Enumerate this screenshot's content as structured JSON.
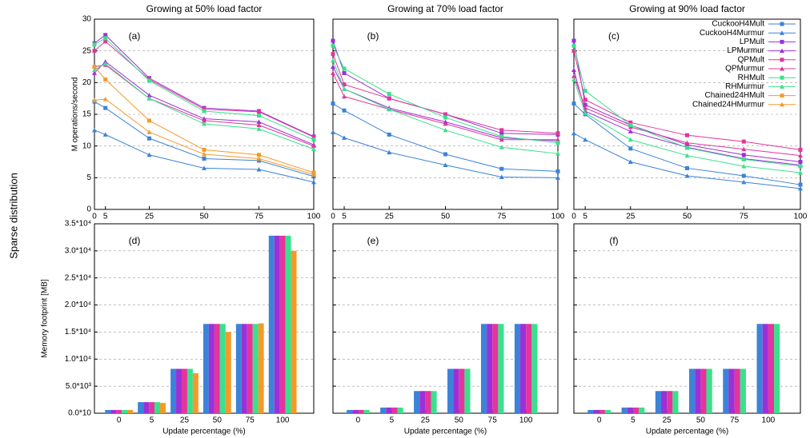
{
  "row_label": "Sparse distribution",
  "chart_data": [
    {
      "type": "line",
      "title": "Growing at 50% load factor",
      "annotation": "(a)",
      "ylabel": "M operations/second",
      "x": [
        0,
        5,
        25,
        50,
        75,
        100
      ],
      "xlim": [
        0,
        100
      ],
      "xticks": [
        0,
        5,
        25,
        50,
        75,
        100
      ],
      "ylim": [
        0,
        30
      ],
      "yticks": [
        0,
        5,
        10,
        15,
        20,
        25,
        30
      ],
      "ytick_labels": true,
      "grid": true,
      "series": [
        {
          "name": "CuckooH4Mult",
          "color": "#3b83d8",
          "marker": "square",
          "values": [
            17,
            16,
            11.2,
            8,
            7.7,
            5.2
          ]
        },
        {
          "name": "CuckooH4Murmur",
          "color": "#3b83d8",
          "marker": "triangle",
          "values": [
            12.5,
            11.8,
            8.6,
            6.5,
            6.3,
            4.3
          ]
        },
        {
          "name": "LPMult",
          "color": "#9b30d9",
          "marker": "square",
          "values": [
            26.2,
            27.5,
            20.7,
            16,
            15.5,
            11.5
          ]
        },
        {
          "name": "LPMurmur",
          "color": "#9b30d9",
          "marker": "triangle",
          "values": [
            21.5,
            23.3,
            18,
            14.3,
            13.8,
            10.2
          ]
        },
        {
          "name": "QPMult",
          "color": "#e3359b",
          "marker": "square",
          "values": [
            25,
            26.5,
            20.5,
            15.8,
            15.4,
            11.4
          ]
        },
        {
          "name": "QPMurmur",
          "color": "#e3359b",
          "marker": "triangle",
          "values": [
            22.5,
            22.8,
            17.5,
            14,
            13.3,
            10
          ]
        },
        {
          "name": "RHMult",
          "color": "#3be08c",
          "marker": "square",
          "values": [
            26,
            27,
            20.3,
            15.5,
            14.8,
            11
          ]
        },
        {
          "name": "RHMurmur",
          "color": "#3be08c",
          "marker": "triangle",
          "values": [
            22,
            23,
            17.5,
            13.5,
            12.7,
            9.5
          ]
        },
        {
          "name": "Chained24HMult",
          "color": "#f39a2a",
          "marker": "square",
          "values": [
            22.5,
            20.5,
            14,
            9.4,
            8.6,
            5.8
          ]
        },
        {
          "name": "Chained24HMurmur",
          "color": "#f39a2a",
          "marker": "triangle",
          "values": [
            17.2,
            17.4,
            12.2,
            8.7,
            8,
            5.5
          ]
        }
      ]
    },
    {
      "type": "line",
      "title": "Growing at 70% load factor",
      "annotation": "(b)",
      "x": [
        0,
        5,
        25,
        50,
        75,
        100
      ],
      "xlim": [
        0,
        100
      ],
      "xticks": [
        0,
        5,
        25,
        50,
        75,
        100
      ],
      "ylim": [
        0,
        30
      ],
      "yticks": [
        0,
        5,
        10,
        15,
        20,
        25,
        30
      ],
      "ytick_labels": false,
      "grid": true,
      "series": [
        {
          "color": "#3b83d8",
          "marker": "square",
          "values": [
            16.7,
            15.6,
            11.8,
            8.7,
            6.4,
            6
          ]
        },
        {
          "color": "#3b83d8",
          "marker": "triangle",
          "values": [
            12.2,
            11.3,
            9,
            7,
            5.1,
            5
          ]
        },
        {
          "color": "#9b30d9",
          "marker": "square",
          "values": [
            26.6,
            21.5,
            17.5,
            15,
            12,
            11.8
          ]
        },
        {
          "color": "#9b30d9",
          "marker": "triangle",
          "values": [
            22.5,
            19,
            16,
            13.8,
            11.3,
            10.8
          ]
        },
        {
          "color": "#e3359b",
          "marker": "square",
          "values": [
            24.5,
            19.7,
            17.5,
            15,
            12.5,
            12
          ]
        },
        {
          "color": "#e3359b",
          "marker": "triangle",
          "values": [
            21.5,
            17.8,
            15.8,
            13.5,
            11,
            11
          ]
        },
        {
          "color": "#3be08c",
          "marker": "square",
          "values": [
            25.8,
            22.2,
            18.2,
            14.5,
            11.5,
            10.5
          ]
        },
        {
          "color": "#3be08c",
          "marker": "triangle",
          "values": [
            23.5,
            19,
            15.8,
            12.5,
            9.8,
            8.8
          ]
        }
      ]
    },
    {
      "type": "line",
      "title": "Growing at 90% load factor",
      "annotation": "(c)",
      "legend": "upper right",
      "x": [
        0,
        5,
        25,
        50,
        75,
        100
      ],
      "xlim": [
        0,
        100
      ],
      "xticks": [
        0,
        5,
        25,
        50,
        75,
        100
      ],
      "ylim": [
        0,
        30
      ],
      "yticks": [
        0,
        5,
        10,
        15,
        20,
        25,
        30
      ],
      "ytick_labels": false,
      "grid": true,
      "series": [
        {
          "name": "CuckooH4Mult",
          "color": "#3b83d8",
          "marker": "square",
          "values": [
            16.7,
            15,
            9.6,
            6.5,
            5.3,
            3.9
          ]
        },
        {
          "name": "CuckooH4Murmur",
          "color": "#3b83d8",
          "marker": "triangle",
          "values": [
            12,
            11,
            7.5,
            5.3,
            4.3,
            3.3
          ]
        },
        {
          "name": "LPMult",
          "color": "#9b30d9",
          "marker": "square",
          "values": [
            26.6,
            16.5,
            13.3,
            10.2,
            8.6,
            7.5
          ]
        },
        {
          "name": "LPMurmur",
          "color": "#9b30d9",
          "marker": "triangle",
          "values": [
            22,
            15.5,
            12.3,
            9.8,
            8,
            7
          ]
        },
        {
          "name": "QPMult",
          "color": "#e3359b",
          "marker": "square",
          "values": [
            25,
            17.3,
            13.7,
            11.7,
            10.7,
            9.4
          ]
        },
        {
          "name": "QPMurmur",
          "color": "#e3359b",
          "marker": "triangle",
          "values": [
            21,
            16,
            13,
            10.5,
            9.5,
            8.5
          ]
        },
        {
          "name": "RHMult",
          "color": "#3be08c",
          "marker": "square",
          "values": [
            25.8,
            18.7,
            13.3,
            9.7,
            7.9,
            6.8
          ]
        },
        {
          "name": "RHMurmur",
          "color": "#3be08c",
          "marker": "triangle",
          "values": [
            20.5,
            15.2,
            11,
            8.5,
            6.8,
            5.8
          ]
        },
        {
          "name": "Chained24HMult",
          "color": "#f39a2a",
          "marker": "square",
          "values": [
            null,
            null,
            null,
            null,
            null,
            null
          ]
        },
        {
          "name": "Chained24HMurmur",
          "color": "#f39a2a",
          "marker": "triangle",
          "values": [
            null,
            null,
            null,
            null,
            null,
            null
          ]
        }
      ]
    },
    {
      "type": "bar",
      "annotation": "(d)",
      "ylabel": "Memory footprint [MB]",
      "xlabel": "Update percentage (%)",
      "categories": [
        "0",
        "5",
        "25",
        "50",
        "75",
        "100"
      ],
      "ylim": [
        0,
        35000
      ],
      "ytick_labels": true,
      "grid": true,
      "yticks": [
        {
          "value": 0,
          "label": "0.0*10"
        },
        {
          "value": 5000,
          "label": "5.0*10³"
        },
        {
          "value": 10000,
          "label": "1.0*10⁴"
        },
        {
          "value": 15000,
          "label": "1.5*10⁴"
        },
        {
          "value": 20000,
          "label": "2.0*10⁴"
        },
        {
          "value": 25000,
          "label": "2.5*10⁴"
        },
        {
          "value": 30000,
          "label": "3.0*10⁴"
        },
        {
          "value": 35000,
          "label": "3.5*10⁴"
        }
      ],
      "series": [
        {
          "color": "#3b83d8",
          "values": [
            600,
            2050,
            8200,
            16500,
            16500,
            32800
          ]
        },
        {
          "color": "#9b30d9",
          "values": [
            600,
            2050,
            8200,
            16500,
            16500,
            32800
          ]
        },
        {
          "color": "#e3359b",
          "values": [
            600,
            2050,
            8200,
            16500,
            16500,
            32800
          ]
        },
        {
          "color": "#3be08c",
          "values": [
            600,
            2050,
            8200,
            16500,
            16500,
            32800
          ]
        },
        {
          "color": "#f39a2a",
          "values": [
            600,
            1900,
            7400,
            15000,
            16600,
            30000
          ]
        }
      ]
    },
    {
      "type": "bar",
      "annotation": "(e)",
      "xlabel": "Update percentage (%)",
      "categories": [
        "0",
        "5",
        "25",
        "50",
        "75",
        "100"
      ],
      "ylim": [
        0,
        35000
      ],
      "yticks": [
        0,
        5000,
        10000,
        15000,
        20000,
        25000,
        30000,
        35000
      ],
      "ytick_labels": false,
      "grid": true,
      "series": [
        {
          "color": "#3b83d8",
          "values": [
            600,
            1050,
            4100,
            8200,
            16500,
            16500
          ]
        },
        {
          "color": "#9b30d9",
          "values": [
            600,
            1050,
            4100,
            8200,
            16500,
            16500
          ]
        },
        {
          "color": "#e3359b",
          "values": [
            600,
            1050,
            4100,
            8200,
            16500,
            16500
          ]
        },
        {
          "color": "#3be08c",
          "values": [
            600,
            1050,
            4100,
            8200,
            16500,
            16500
          ]
        }
      ]
    },
    {
      "type": "bar",
      "annotation": "(f)",
      "xlabel": "Update percentage (%)",
      "categories": [
        "0",
        "5",
        "25",
        "50",
        "75",
        "100"
      ],
      "ylim": [
        0,
        35000
      ],
      "yticks": [
        0,
        5000,
        10000,
        15000,
        20000,
        25000,
        30000,
        35000
      ],
      "ytick_labels": false,
      "grid": true,
      "series": [
        {
          "color": "#3b83d8",
          "values": [
            600,
            1050,
            4100,
            8200,
            8200,
            16500
          ]
        },
        {
          "color": "#9b30d9",
          "values": [
            600,
            1050,
            4100,
            8200,
            8200,
            16500
          ]
        },
        {
          "color": "#e3359b",
          "values": [
            600,
            1050,
            4100,
            8200,
            8200,
            16500
          ]
        },
        {
          "color": "#3be08c",
          "values": [
            600,
            1050,
            4100,
            8200,
            8200,
            16500
          ]
        }
      ]
    }
  ]
}
